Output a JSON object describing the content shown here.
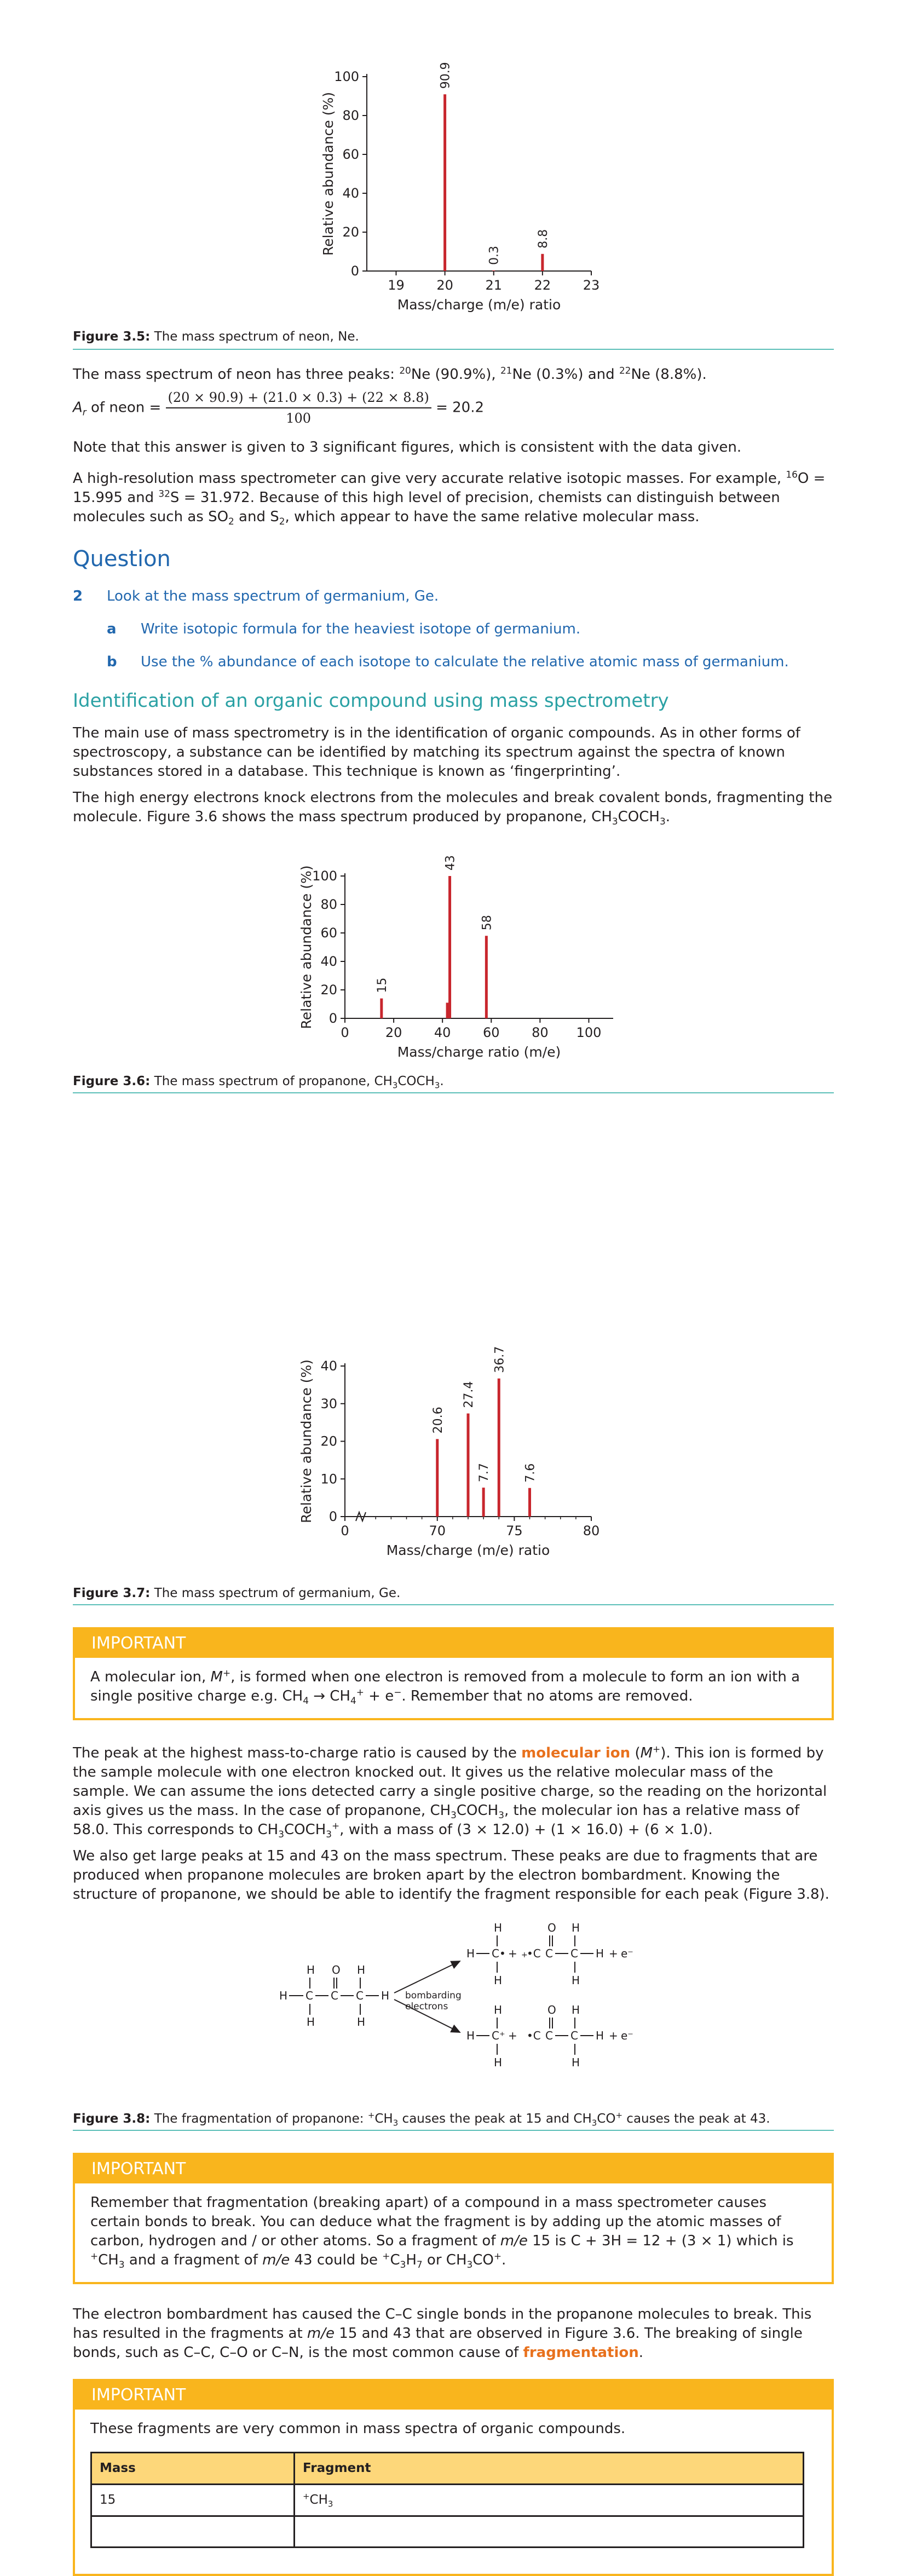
{
  "fig35": {
    "caption_label": "Figure 3.5:",
    "caption_text": " The mass spectrum of neon, Ne.",
    "chart_data": {
      "type": "bar",
      "xlabel": "Mass/charge (m/e) ratio",
      "ylabel": "Relative abundance (%)",
      "x_ticks": [
        "19",
        "20",
        "21",
        "22",
        "23"
      ],
      "y_ticks": [
        "0",
        "20",
        "40",
        "60",
        "80",
        "100"
      ],
      "xlim": [
        18.4,
        23
      ],
      "ylim": [
        0,
        100
      ],
      "x": [
        20,
        21,
        22
      ],
      "values": [
        90.9,
        0.3,
        8.8
      ],
      "labels": [
        "90.9",
        "0.3",
        "8.8"
      ],
      "color": "#c8262d"
    }
  },
  "neon_text": {
    "intro": "The mass spectrum of neon has three peaks: ",
    "p1_mass": "20",
    "p1_rest": "Ne (90.9%), ",
    "p2_mass": "21",
    "p2_rest": "Ne (0.3%) and ",
    "p3_mass": "22",
    "p3_rest": "Ne (8.8%)."
  },
  "formula": {
    "lhs_a": "A",
    "lhs_r": "r",
    "lhs_rest": " of neon = ",
    "numerator": "(20 × 90.9) + (21.0 × 0.3) + (22 × 8.8)",
    "denominator": "100",
    "result": " = 20.2"
  },
  "note_sigfig": "Note that this answer is given to 3 significant figures, which is consistent with the data given.",
  "hires": {
    "t1": "A high-resolution mass spectrometer can give very accurate relative isotopic masses. For example, ",
    "o_mass": "16",
    "t2": "O = 15.995 and ",
    "s_mass": "32",
    "t3": "S = 31.972. Because of this high level of precision, chemists can distinguish between molecules such as SO",
    "so_sub": "2",
    "t4": " and S",
    "s2_sub": "2",
    "t5": ", which appear to have the same relative molecular mass."
  },
  "question": {
    "heading": "Question",
    "number": "2",
    "stem": "Look at the mass spectrum of germanium, Ge.",
    "a_label": "a",
    "a_text": "Write isotopic formula for the heaviest isotope of germanium.",
    "b_label": "b",
    "b_text": "Use the % abundance of each isotope to calculate the relative atomic mass of germanium."
  },
  "section": {
    "heading": "Identification of an organic compound using mass spectrometry",
    "p1": "The main use of mass spectrometry is in the identification of organic compounds. As in other forms of spectroscopy, a substance can be identified by matching its spectrum against the spectra of known substances stored in a database. This technique is known as ‘fingerprinting’.",
    "p2_a": "The high energy electrons knock electrons from the molecules and break covalent bonds, fragmenting the molecule. Figure 3.6 shows the mass spectrum produced by propanone, CH",
    "p2_s1": "3",
    "p2_b": "COCH",
    "p2_s2": "3",
    "p2_c": "."
  },
  "fig36": {
    "caption_label": "Figure 3.6:",
    "caption_a": " The mass spectrum of propanone, CH",
    "caption_s1": "3",
    "caption_b": "COCH",
    "caption_s2": "3",
    "caption_c": ".",
    "chart_data": {
      "type": "bar",
      "xlabel": "Mass/charge ratio (m/e)",
      "ylabel": "Relative abundance (%)",
      "x_ticks": [
        "0",
        "20",
        "40",
        "60",
        "80",
        "100"
      ],
      "y_ticks": [
        "0",
        "20",
        "40",
        "60",
        "80",
        "100"
      ],
      "xlim": [
        0,
        110
      ],
      "ylim": [
        0,
        100
      ],
      "x": [
        15,
        42,
        43,
        58
      ],
      "values": [
        14,
        11,
        100,
        58
      ],
      "labels": [
        "15",
        "",
        "43",
        "58"
      ],
      "color": "#c8262d"
    }
  },
  "fig37": {
    "caption_label": "Figure 3.7:",
    "caption_text": " The mass spectrum of germanium, Ge.",
    "chart_data": {
      "type": "bar",
      "xlabel": "Mass/charge (m/e) ratio",
      "ylabel": "Relative abundance (%)",
      "x_ticks": [
        "0",
        "70",
        "75",
        "80"
      ],
      "y_ticks": [
        "0",
        "10",
        "20",
        "30",
        "40"
      ],
      "xlim": [
        64,
        80
      ],
      "ylim": [
        0,
        40
      ],
      "x": [
        70,
        72,
        73,
        74,
        76
      ],
      "values": [
        20.6,
        27.4,
        7.7,
        36.7,
        7.6
      ],
      "labels": [
        "20.6",
        "27.4",
        "7.7",
        "36.7",
        "7.6"
      ],
      "color": "#c8262d"
    }
  },
  "important1": {
    "head": "IMPORTANT",
    "t1": "A molecular ion, ",
    "m": "M",
    "plus": "+",
    "t2": ", is formed when one electron is removed from a molecule to form an ion with a single positive charge e.g. CH",
    "s1": "4",
    "t3": " → CH",
    "s2": "4",
    "sup2": "+",
    "t4": " + e",
    "sup3": "−",
    "t5": ". Remember that no atoms are removed."
  },
  "molion": {
    "t1": "The peak at the highest mass-to-charge ratio is caused by the ",
    "hl": "molecular ion",
    "t2": " (",
    "m": "M",
    "plus": "+",
    "t3": "). This ion is formed by the sample molecule with one electron knocked out. It gives us the relative molecular mass of the sample. We can assume the ions detected carry a single positive charge, so the reading on the horizontal axis gives us the mass. In the case of propanone, CH",
    "s1": "3",
    "t4": "COCH",
    "s2": "3",
    "t5": ", the molecular ion has a relative mass of 58.0. This corresponds to CH",
    "s3": "3",
    "t6": "COCH",
    "s4": "3",
    "sup4": "+",
    "t7": ", with a mass of (3 × 12.0) + (1 × 16.0) + (6 × 1.0)."
  },
  "peaks_text": "We also get large peaks at 15 and 43 on the mass spectrum. These peaks are due to fragments that are produced when propanone molecules are broken apart by the electron bombardment. Knowing the structure of propanone, we should be able to identify the fragment responsible for each peak (Figure 3.8).",
  "fig38": {
    "label_line1": "bombarding",
    "label_line2": "electrons",
    "caption_label": "Figure 3.8:",
    "caption_a": " The fragmentation of propanone: ",
    "caption_sup1": "+",
    "caption_b": "CH",
    "caption_s1": "3",
    "caption_c": " causes the peak at 15 and CH",
    "caption_s2": "3",
    "caption_d": "CO",
    "caption_sup2": "+",
    "caption_e": " causes the peak at 43."
  },
  "important2": {
    "head": "IMPORTANT",
    "t1": "Remember that fragmentation (breaking apart) of a compound in a mass spectrometer causes certain bonds to break. You can deduce what the fragment is by adding up the atomic masses of carbon, hydrogen and / or other atoms. So a fragment of ",
    "me1": "m/e",
    "t2": " 15 is C + 3H = 12 + (3 × 1) which is ",
    "sup1": "+",
    "t3": "CH",
    "s1": "3",
    "t4": " and a fragment of ",
    "me2": "m/e",
    "t5": " 43 could be ",
    "sup2": "+",
    "t6": "C",
    "s2": "3",
    "t7": "H",
    "s3": "7",
    "t8": " or CH",
    "s4": "3",
    "t9": "CO",
    "sup3": "+",
    "t10": "."
  },
  "bombard": {
    "t1": "The electron bombardment has caused the C–C single bonds in the propanone molecules to break. This has resulted in the fragments at ",
    "me": "m/e",
    "t2": " 15 and 43 that are observed in Figure 3.6. The breaking of single bonds, such as C–C, C–O or C–N, is the most common cause of ",
    "hl": "fragmentation",
    "t3": "."
  },
  "important3": {
    "head": "IMPORTANT",
    "text": "These fragments are very common in mass spectra of organic compounds.",
    "col_mass": "Mass",
    "col_fragment": "Fragment",
    "row1_mass": "15",
    "row1_sup": "+",
    "row1_frag": "CH",
    "row1_sub": "3"
  }
}
